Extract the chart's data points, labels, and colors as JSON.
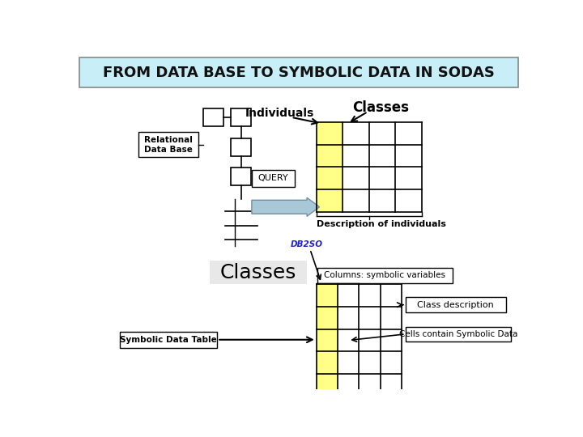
{
  "title": "FROM DATA BASE TO SYMBOLIC DATA IN SODAS",
  "title_bg": "#c8eef8",
  "bg_color": "#ffffff",
  "title_fontsize": 13,
  "individuals_label": "Individuals",
  "classes_label_top": "Classes",
  "classes_label_bottom": "Classes",
  "relational_db_label": "Relational\nData Base",
  "query_label": "QUERY",
  "db2so_label": "DB2SO",
  "desc_individuals_label": "Description of individuals",
  "col_symbolic_label": "Columns: symbolic variables",
  "class_desc_label": "Class description",
  "symbolic_data_table_label": "Symbolic Data Table",
  "cells_contain_label": "Cells contain Symbolic Data",
  "yellow_color": "#ffff88",
  "arrow_color": "#a8c8d8",
  "db2so_color": "#2222cc",
  "grid_color": "#000000",
  "light_gray_bg": "#e8e8e8"
}
